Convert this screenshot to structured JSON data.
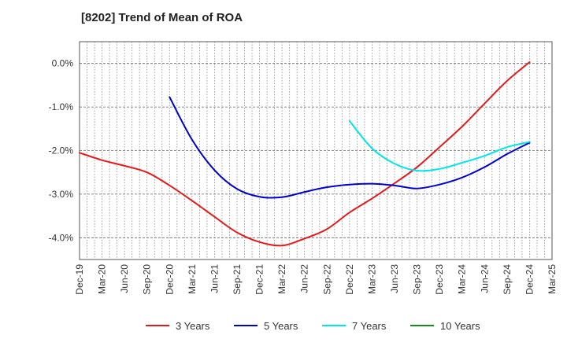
{
  "chart_data": {
    "type": "line",
    "title": "[8202]  Trend of Mean of ROA",
    "xlabel": "",
    "ylabel": "",
    "x_ticks": [
      "Dec-19",
      "Mar-20",
      "Jun-20",
      "Sep-20",
      "Dec-20",
      "Mar-21",
      "Jun-21",
      "Sep-21",
      "Dec-21",
      "Mar-22",
      "Jun-22",
      "Sep-22",
      "Dec-22",
      "Mar-23",
      "Jun-23",
      "Sep-23",
      "Dec-23",
      "Mar-24",
      "Jun-24",
      "Sep-24",
      "Dec-24",
      "Mar-25"
    ],
    "y_ticks": [
      0.0,
      -1.0,
      -2.0,
      -3.0,
      -4.0
    ],
    "y_tick_labels": [
      "0.0%",
      "-1.0%",
      "-2.0%",
      "-3.0%",
      "-4.0%"
    ],
    "ylim": [
      -4.5,
      0.5
    ],
    "grid": true,
    "legend_position": "bottom",
    "series": [
      {
        "name": "3 Years",
        "color": "#e31a1c",
        "points": [
          {
            "x": "Dec-19",
            "y": -2.05
          },
          {
            "x": "Mar-20",
            "y": -2.22
          },
          {
            "x": "Jun-20",
            "y": -2.35
          },
          {
            "x": "Sep-20",
            "y": -2.5
          },
          {
            "x": "Dec-20",
            "y": -2.8
          },
          {
            "x": "Mar-21",
            "y": -3.15
          },
          {
            "x": "Jun-21",
            "y": -3.52
          },
          {
            "x": "Sep-21",
            "y": -3.88
          },
          {
            "x": "Dec-21",
            "y": -4.1
          },
          {
            "x": "Mar-22",
            "y": -4.18
          },
          {
            "x": "Jun-22",
            "y": -4.02
          },
          {
            "x": "Sep-22",
            "y": -3.8
          },
          {
            "x": "Dec-22",
            "y": -3.42
          },
          {
            "x": "Mar-23",
            "y": -3.1
          },
          {
            "x": "Jun-23",
            "y": -2.75
          },
          {
            "x": "Sep-23",
            "y": -2.38
          },
          {
            "x": "Dec-23",
            "y": -1.92
          },
          {
            "x": "Mar-24",
            "y": -1.45
          },
          {
            "x": "Jun-24",
            "y": -0.92
          },
          {
            "x": "Sep-24",
            "y": -0.4
          },
          {
            "x": "Dec-24",
            "y": 0.03
          }
        ]
      },
      {
        "name": "5 Years",
        "color": "#0000cc",
        "points": [
          {
            "x": "Dec-20",
            "y": -0.77
          },
          {
            "x": "Mar-21",
            "y": -1.75
          },
          {
            "x": "Jun-21",
            "y": -2.45
          },
          {
            "x": "Sep-21",
            "y": -2.88
          },
          {
            "x": "Dec-21",
            "y": -3.06
          },
          {
            "x": "Mar-22",
            "y": -3.07
          },
          {
            "x": "Jun-22",
            "y": -2.95
          },
          {
            "x": "Sep-22",
            "y": -2.84
          },
          {
            "x": "Dec-22",
            "y": -2.78
          },
          {
            "x": "Mar-23",
            "y": -2.76
          },
          {
            "x": "Jun-23",
            "y": -2.8
          },
          {
            "x": "Sep-23",
            "y": -2.87
          },
          {
            "x": "Dec-23",
            "y": -2.78
          },
          {
            "x": "Mar-24",
            "y": -2.62
          },
          {
            "x": "Jun-24",
            "y": -2.38
          },
          {
            "x": "Sep-24",
            "y": -2.08
          },
          {
            "x": "Dec-24",
            "y": -1.82
          }
        ]
      },
      {
        "name": "7 Years",
        "color": "#00e5e5",
        "points": [
          {
            "x": "Dec-22",
            "y": -1.32
          },
          {
            "x": "Mar-23",
            "y": -1.95
          },
          {
            "x": "Jun-23",
            "y": -2.3
          },
          {
            "x": "Sep-23",
            "y": -2.46
          },
          {
            "x": "Dec-23",
            "y": -2.42
          },
          {
            "x": "Mar-24",
            "y": -2.28
          },
          {
            "x": "Jun-24",
            "y": -2.12
          },
          {
            "x": "Sep-24",
            "y": -1.92
          },
          {
            "x": "Dec-24",
            "y": -1.8
          }
        ]
      },
      {
        "name": "10 Years",
        "color": "#1a8a1a",
        "points": []
      }
    ]
  }
}
